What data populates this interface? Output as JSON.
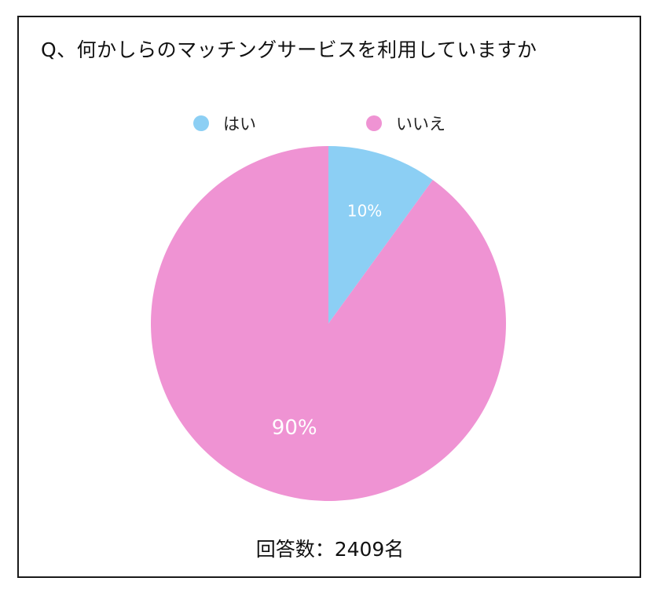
{
  "chart_data": {
    "type": "pie",
    "title": "Q、何かしらのマッチングサービスを利用していますか",
    "categories": [
      "はい",
      "いいえ"
    ],
    "values": [
      10,
      90
    ],
    "value_labels": [
      "10%",
      "90%"
    ],
    "colors": [
      "#8ccff4",
      "#ef93d3"
    ],
    "legend_position": "top",
    "footer": "回答数：2409名"
  }
}
